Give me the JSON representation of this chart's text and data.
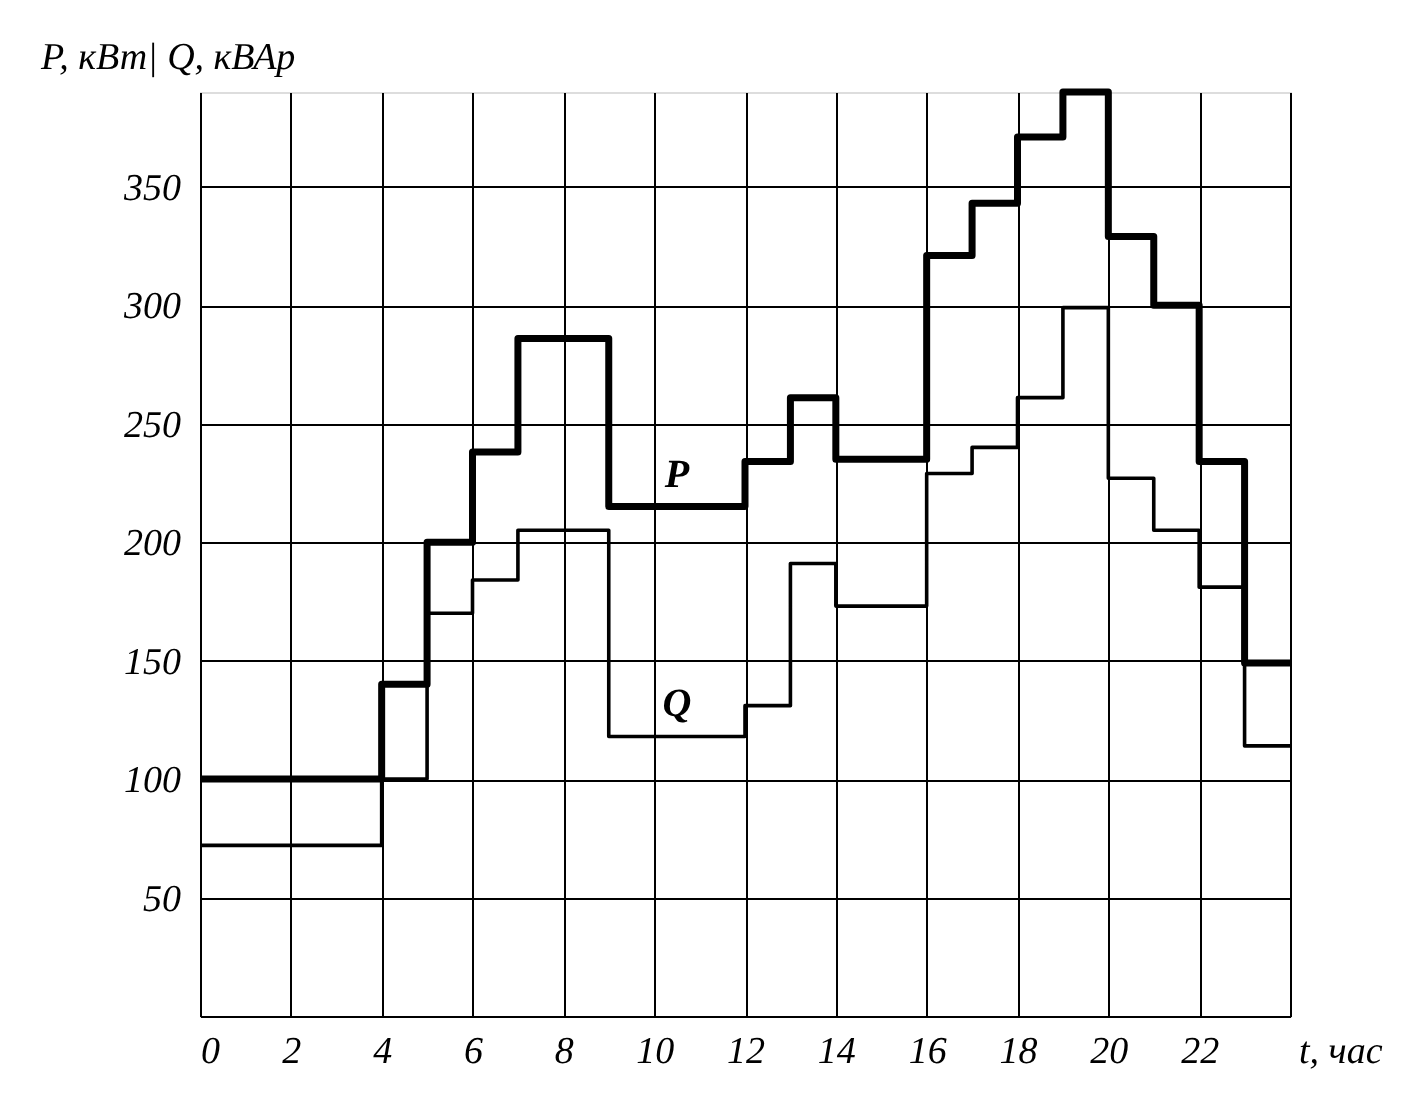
{
  "chart_data": {
    "type": "step",
    "xlabel": "t, час",
    "ylabel": "P, кВт| Q, кВАр",
    "x": [
      0,
      4,
      5,
      6,
      7,
      9,
      12,
      13,
      14,
      16,
      17,
      18,
      19,
      20,
      21,
      22,
      23,
      24
    ],
    "series": [
      {
        "name": "P",
        "color": "#000000",
        "values": [
          100,
          140,
          200,
          238,
          286,
          215,
          234,
          261,
          235,
          321,
          343,
          371,
          390,
          329,
          300,
          234,
          149,
          149
        ]
      },
      {
        "name": "Q",
        "color": "#000000",
        "values": [
          72,
          100,
          170,
          184,
          205,
          118,
          131,
          191,
          173,
          229,
          240,
          261,
          299,
          227,
          205,
          181,
          114,
          114
        ]
      }
    ],
    "xlim": [
      0,
      24
    ],
    "xticks": [
      0,
      2,
      4,
      6,
      8,
      10,
      12,
      14,
      16,
      18,
      20,
      22,
      {
        "value": 24,
        "label": null
      }
    ],
    "ylim": [
      0,
      390
    ],
    "yticks": [
      {
        "value": 0,
        "label": null
      },
      50,
      100,
      150,
      200,
      250,
      300,
      350
    ],
    "grid": true,
    "marker": "none",
    "line_style": "solid"
  }
}
